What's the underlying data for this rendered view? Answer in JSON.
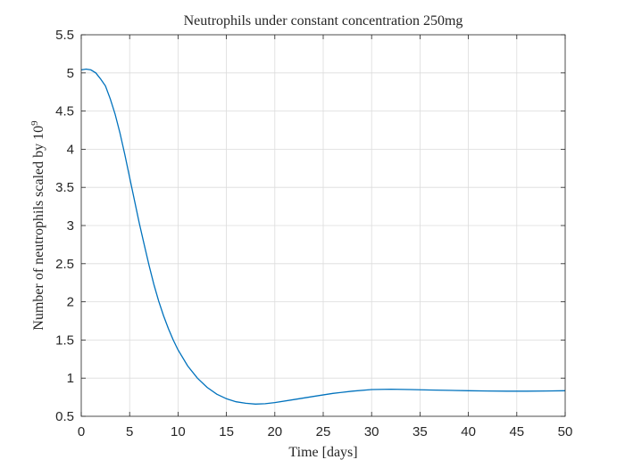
{
  "chart_data": {
    "type": "line",
    "title": "Neutrophils under constant concentration 250mg",
    "xlabel": "Time [days]",
    "ylabel": "Number of neutrophils scaled by 10",
    "ylabel_superscript": "9",
    "xlim": [
      0,
      50
    ],
    "ylim": [
      0.5,
      5.5
    ],
    "xticks": [
      0,
      5,
      10,
      15,
      20,
      25,
      30,
      35,
      40,
      45,
      50
    ],
    "xtick_labels": [
      "0",
      "5",
      "10",
      "15",
      "20",
      "25",
      "30",
      "35",
      "40",
      "45",
      "50"
    ],
    "yticks": [
      0.5,
      1,
      1.5,
      2,
      2.5,
      3,
      3.5,
      4,
      4.5,
      5,
      5.5
    ],
    "ytick_labels": [
      "0.5",
      "1",
      "1.5",
      "2",
      "2.5",
      "3",
      "3.5",
      "4",
      "4.5",
      "5",
      "5.5"
    ],
    "grid": true,
    "line_color": "#0072bd",
    "series": [
      {
        "x": [
          0,
          0.5,
          1,
          1.5,
          2,
          2.5,
          3,
          3.5,
          4,
          4.5,
          5,
          5.5,
          6,
          6.5,
          7,
          7.5,
          8,
          8.5,
          9,
          9.5,
          10,
          11,
          12,
          13,
          14,
          15,
          16,
          17,
          18,
          19,
          20,
          22,
          24,
          26,
          28,
          30,
          32,
          34,
          36,
          38,
          40,
          42,
          44,
          46,
          48,
          50
        ],
        "values": [
          5.04,
          5.05,
          5.04,
          5.0,
          4.92,
          4.83,
          4.66,
          4.46,
          4.21,
          3.93,
          3.63,
          3.33,
          3.03,
          2.75,
          2.48,
          2.23,
          2.01,
          1.82,
          1.65,
          1.5,
          1.37,
          1.16,
          1.0,
          0.88,
          0.79,
          0.73,
          0.69,
          0.67,
          0.66,
          0.665,
          0.68,
          0.72,
          0.76,
          0.8,
          0.83,
          0.85,
          0.855,
          0.85,
          0.845,
          0.84,
          0.835,
          0.832,
          0.83,
          0.83,
          0.832,
          0.835
        ]
      }
    ]
  }
}
